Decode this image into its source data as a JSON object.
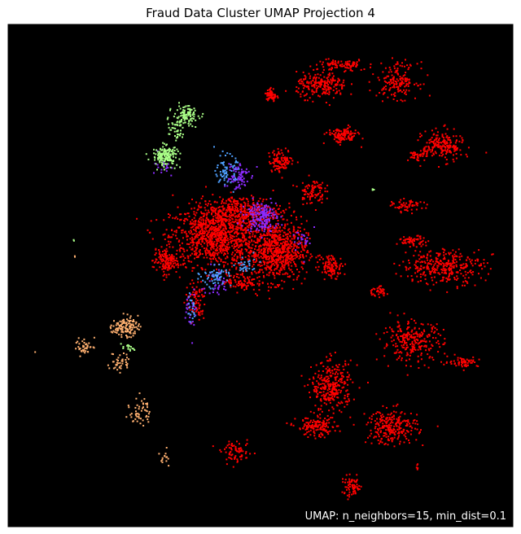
{
  "chart_data": {
    "type": "scatter",
    "title": "Fraud Data Cluster UMAP Projection 4",
    "xlabel": "",
    "ylabel": "",
    "axes_visible": false,
    "grid": false,
    "legend": "none",
    "background_color": "#000000",
    "annotation": "UMAP: n_neighbors=15, min_dist=0.1",
    "annotation_placement": "bottom-right",
    "annotation_color": "#ffffff",
    "xlim": [
      0,
      100
    ],
    "ylim": [
      0,
      100
    ],
    "series": [
      {
        "color": "#ff0000",
        "clusters": [
          {
            "x": 41,
            "y": 58,
            "rx": 9,
            "ry": 6,
            "n": 1000
          },
          {
            "x": 53,
            "y": 55,
            "rx": 6,
            "ry": 6,
            "n": 750
          },
          {
            "x": 46,
            "y": 63,
            "rx": 8,
            "ry": 3,
            "n": 350
          },
          {
            "x": 31,
            "y": 53,
            "rx": 2.5,
            "ry": 2.5,
            "n": 140
          },
          {
            "x": 37,
            "y": 45,
            "rx": 2,
            "ry": 4,
            "n": 80
          },
          {
            "x": 46,
            "y": 49,
            "rx": 3,
            "ry": 2,
            "n": 90
          },
          {
            "x": 54,
            "y": 73,
            "rx": 2.5,
            "ry": 2.2,
            "n": 110
          },
          {
            "x": 60,
            "y": 67,
            "rx": 2.5,
            "ry": 2.5,
            "n": 90
          },
          {
            "x": 52,
            "y": 86,
            "rx": 1,
            "ry": 1.5,
            "n": 60
          },
          {
            "x": 62,
            "y": 88,
            "rx": 5,
            "ry": 2.5,
            "n": 220
          },
          {
            "x": 66,
            "y": 92,
            "rx": 5,
            "ry": 1.2,
            "n": 90
          },
          {
            "x": 77,
            "y": 89,
            "rx": 4,
            "ry": 3.5,
            "n": 170
          },
          {
            "x": 66,
            "y": 78,
            "rx": 3,
            "ry": 1.5,
            "n": 130
          },
          {
            "x": 86,
            "y": 76,
            "rx": 4,
            "ry": 3,
            "n": 200
          },
          {
            "x": 81,
            "y": 74,
            "rx": 2,
            "ry": 1,
            "n": 40
          },
          {
            "x": 79,
            "y": 64,
            "rx": 3,
            "ry": 1.2,
            "n": 60
          },
          {
            "x": 80,
            "y": 57,
            "rx": 3,
            "ry": 1,
            "n": 60
          },
          {
            "x": 64,
            "y": 52,
            "rx": 2.2,
            "ry": 2.2,
            "n": 100
          },
          {
            "x": 86,
            "y": 52,
            "rx": 8,
            "ry": 3.5,
            "n": 330
          },
          {
            "x": 73,
            "y": 47,
            "rx": 2,
            "ry": 1,
            "n": 40
          },
          {
            "x": 80,
            "y": 37,
            "rx": 6,
            "ry": 4,
            "n": 260
          },
          {
            "x": 90,
            "y": 33,
            "rx": 3,
            "ry": 1,
            "n": 60
          },
          {
            "x": 64,
            "y": 28,
            "rx": 4,
            "ry": 5,
            "n": 300
          },
          {
            "x": 61,
            "y": 20,
            "rx": 4,
            "ry": 2,
            "n": 140
          },
          {
            "x": 76,
            "y": 20,
            "rx": 5,
            "ry": 3.5,
            "n": 250
          },
          {
            "x": 45,
            "y": 15,
            "rx": 3,
            "ry": 2,
            "n": 70
          },
          {
            "x": 68,
            "y": 8,
            "rx": 2,
            "ry": 2,
            "n": 70
          },
          {
            "x": 81,
            "y": 12,
            "rx": 0.5,
            "ry": 0.5,
            "n": 6
          }
        ]
      },
      {
        "color": "#8b2bff",
        "clusters": [
          {
            "x": 50,
            "y": 62,
            "rx": 3,
            "ry": 3,
            "n": 180
          },
          {
            "x": 45,
            "y": 70,
            "rx": 2.5,
            "ry": 3,
            "n": 80
          },
          {
            "x": 41,
            "y": 49,
            "rx": 3,
            "ry": 3,
            "n": 40
          },
          {
            "x": 36,
            "y": 43,
            "rx": 1,
            "ry": 5,
            "n": 30
          },
          {
            "x": 59,
            "y": 57,
            "rx": 3,
            "ry": 3,
            "n": 25
          },
          {
            "x": 31,
            "y": 72,
            "rx": 2,
            "ry": 2,
            "n": 20
          }
        ]
      },
      {
        "color": "#4fa0ff",
        "clusters": [
          {
            "x": 43,
            "y": 71,
            "rx": 2,
            "ry": 3,
            "n": 70
          },
          {
            "x": 41,
            "y": 50,
            "rx": 3,
            "ry": 2,
            "n": 60
          },
          {
            "x": 47,
            "y": 52,
            "rx": 2,
            "ry": 2,
            "n": 30
          },
          {
            "x": 36,
            "y": 44,
            "rx": 1,
            "ry": 3,
            "n": 20
          }
        ]
      },
      {
        "color": "#aaff88",
        "clusters": [
          {
            "x": 31,
            "y": 74,
            "rx": 2.5,
            "ry": 2,
            "n": 160
          },
          {
            "x": 35,
            "y": 82,
            "rx": 2.5,
            "ry": 2,
            "n": 110
          },
          {
            "x": 33,
            "y": 79,
            "rx": 1.5,
            "ry": 2,
            "n": 40
          },
          {
            "x": 24,
            "y": 36,
            "rx": 1.5,
            "ry": 1,
            "n": 15
          },
          {
            "x": 72,
            "y": 67,
            "rx": 0.4,
            "ry": 0.4,
            "n": 3
          },
          {
            "x": 13,
            "y": 57,
            "rx": 0.3,
            "ry": 0.3,
            "n": 2
          }
        ]
      },
      {
        "color": "#ffb070",
        "clusters": [
          {
            "x": 23,
            "y": 40,
            "rx": 2.5,
            "ry": 2,
            "n": 120
          },
          {
            "x": 15,
            "y": 36,
            "rx": 2,
            "ry": 1.5,
            "n": 40
          },
          {
            "x": 22,
            "y": 33,
            "rx": 2,
            "ry": 2,
            "n": 40
          },
          {
            "x": 26,
            "y": 23,
            "rx": 2,
            "ry": 3,
            "n": 50
          },
          {
            "x": 31,
            "y": 14,
            "rx": 1,
            "ry": 2,
            "n": 14
          },
          {
            "x": 5,
            "y": 35,
            "rx": 0.2,
            "ry": 0.2,
            "n": 1
          },
          {
            "x": 13,
            "y": 54,
            "rx": 0.2,
            "ry": 0.2,
            "n": 2
          }
        ]
      }
    ]
  }
}
